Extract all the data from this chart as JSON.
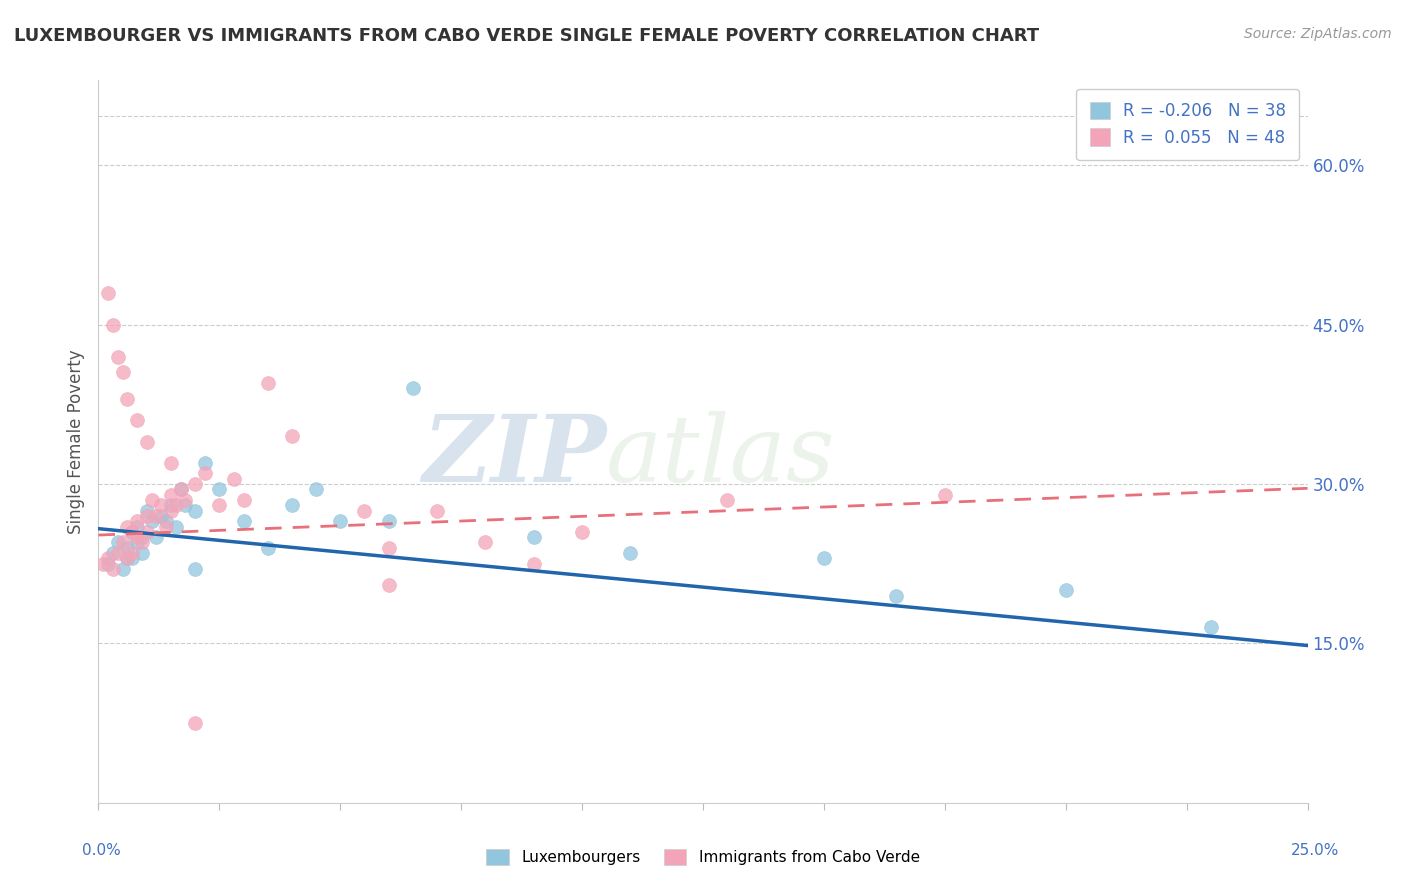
{
  "title": "LUXEMBOURGER VS IMMIGRANTS FROM CABO VERDE SINGLE FEMALE POVERTY CORRELATION CHART",
  "source": "Source: ZipAtlas.com",
  "ylabel": "Single Female Poverty",
  "x_range": [
    0.0,
    0.25
  ],
  "y_range": [
    0.0,
    0.68
  ],
  "blue_color": "#92c5de",
  "pink_color": "#f4a4b8",
  "blue_line_color": "#2166ac",
  "pink_line_color": "#e8707a",
  "blue_scatter_x": [
    0.002,
    0.003,
    0.004,
    0.005,
    0.006,
    0.006,
    0.007,
    0.007,
    0.008,
    0.008,
    0.009,
    0.009,
    0.01,
    0.011,
    0.012,
    0.013,
    0.014,
    0.015,
    0.016,
    0.017,
    0.018,
    0.02,
    0.022,
    0.025,
    0.03,
    0.035,
    0.04,
    0.045,
    0.05,
    0.06,
    0.065,
    0.09,
    0.11,
    0.15,
    0.165,
    0.2,
    0.23,
    0.02
  ],
  "blue_scatter_y": [
    0.225,
    0.235,
    0.245,
    0.22,
    0.23,
    0.24,
    0.255,
    0.23,
    0.245,
    0.26,
    0.25,
    0.235,
    0.275,
    0.265,
    0.25,
    0.27,
    0.265,
    0.28,
    0.26,
    0.295,
    0.28,
    0.275,
    0.32,
    0.295,
    0.265,
    0.24,
    0.28,
    0.295,
    0.265,
    0.265,
    0.39,
    0.25,
    0.235,
    0.23,
    0.195,
    0.2,
    0.165,
    0.22
  ],
  "pink_scatter_x": [
    0.001,
    0.002,
    0.003,
    0.004,
    0.005,
    0.006,
    0.006,
    0.007,
    0.007,
    0.008,
    0.008,
    0.009,
    0.01,
    0.01,
    0.011,
    0.012,
    0.013,
    0.014,
    0.015,
    0.015,
    0.016,
    0.017,
    0.018,
    0.02,
    0.022,
    0.025,
    0.028,
    0.03,
    0.035,
    0.04,
    0.055,
    0.06,
    0.07,
    0.08,
    0.09,
    0.1,
    0.13,
    0.175,
    0.002,
    0.003,
    0.004,
    0.005,
    0.006,
    0.008,
    0.01,
    0.015,
    0.02,
    0.06
  ],
  "pink_scatter_y": [
    0.225,
    0.23,
    0.22,
    0.235,
    0.245,
    0.23,
    0.26,
    0.255,
    0.235,
    0.25,
    0.265,
    0.245,
    0.27,
    0.255,
    0.285,
    0.27,
    0.28,
    0.26,
    0.29,
    0.275,
    0.28,
    0.295,
    0.285,
    0.3,
    0.31,
    0.28,
    0.305,
    0.285,
    0.395,
    0.345,
    0.275,
    0.24,
    0.275,
    0.245,
    0.225,
    0.255,
    0.285,
    0.29,
    0.48,
    0.45,
    0.42,
    0.405,
    0.38,
    0.36,
    0.34,
    0.32,
    0.075,
    0.205
  ],
  "blue_line_x0": 0.0,
  "blue_line_y0": 0.258,
  "blue_line_x1": 0.25,
  "blue_line_y1": 0.148,
  "pink_line_x0": 0.0,
  "pink_line_y0": 0.252,
  "pink_line_x1": 0.25,
  "pink_line_y1": 0.296,
  "right_yticks": [
    0.15,
    0.3,
    0.45,
    0.6
  ],
  "right_yticklabels": [
    "15.0%",
    "30.0%",
    "45.0%",
    "60.0%"
  ]
}
